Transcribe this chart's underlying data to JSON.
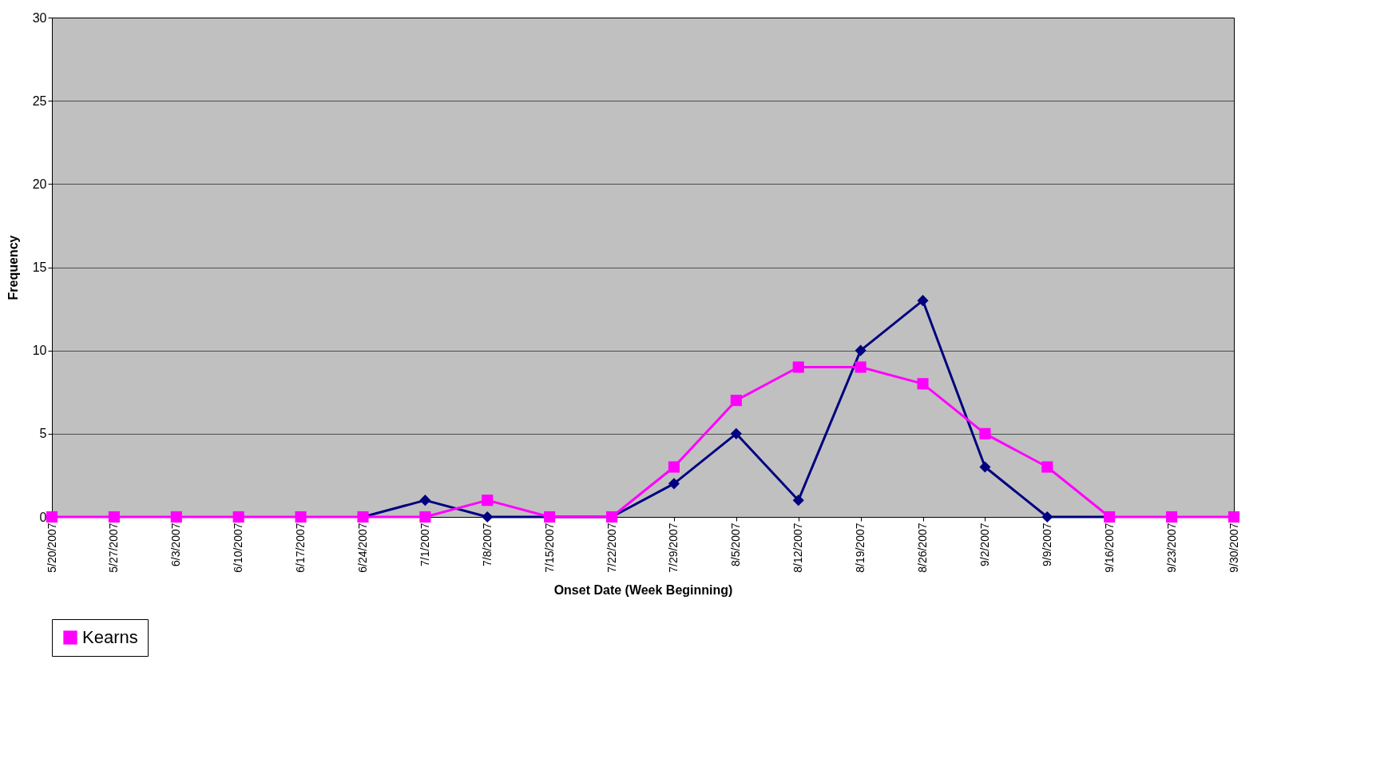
{
  "chart_data": {
    "type": "line",
    "xlabel": "Onset Date (Week Beginning)",
    "ylabel": "Frequency",
    "categories": [
      "5/20/2007",
      "5/27/2007",
      "6/3/2007",
      "6/10/2007",
      "6/17/2007",
      "6/24/2007",
      "7/1/2007",
      "7/8/2007",
      "7/15/2007",
      "7/22/2007",
      "7/29/2007",
      "8/5/2007",
      "8/12/2007",
      "8/19/2007",
      "8/26/2007",
      "9/2/2007",
      "9/9/2007",
      "9/16/2007",
      "9/23/2007",
      "9/30/2007"
    ],
    "series": [
      {
        "color": "#000080",
        "marker": "diamond",
        "values": [
          null,
          null,
          null,
          null,
          null,
          0,
          1,
          0,
          0,
          0,
          2,
          5,
          1,
          10,
          13,
          3,
          0,
          0,
          null,
          null
        ]
      },
      {
        "name": "Kearns",
        "color": "#ff00ff",
        "marker": "square",
        "values": [
          0,
          0,
          0,
          0,
          0,
          0,
          0,
          1,
          0,
          0,
          3,
          7,
          9,
          9,
          8,
          5,
          3,
          0,
          0,
          0
        ]
      }
    ],
    "ylim": [
      0,
      30
    ],
    "yticks": [
      0,
      5,
      10,
      15,
      20,
      25,
      30
    ],
    "grid": "y",
    "legend": "bottom"
  }
}
